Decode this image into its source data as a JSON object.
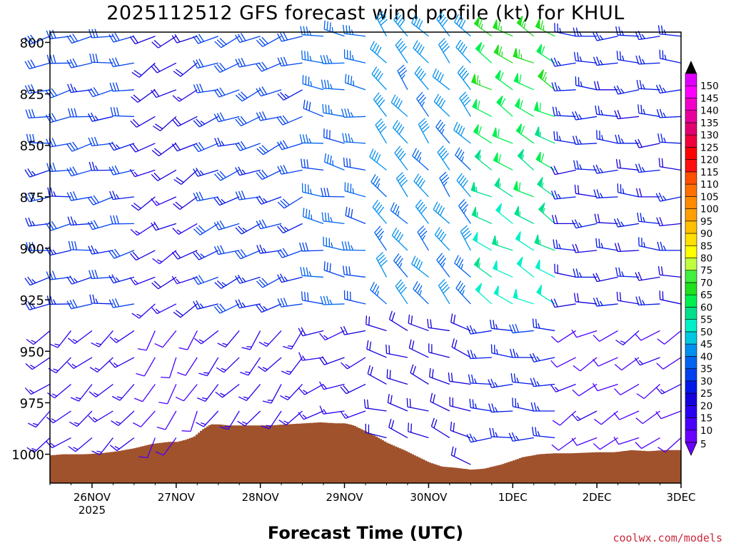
{
  "chart_data": {
    "type": "wind-barb-profile",
    "title": "2025112512 GFS forecast wind profile (kt) for KHUL",
    "xlabel": "Forecast Time (UTC)",
    "credit": "coolwx.com/models",
    "y_axis": {
      "unit": "hPa",
      "ticks": [
        800,
        825,
        850,
        875,
        900,
        925,
        950,
        975,
        1000
      ],
      "range": [
        795,
        1014
      ],
      "inverted": true
    },
    "x_axis": {
      "ticks": [
        {
          "label": "26NOV",
          "sub": "2025",
          "day": 0
        },
        {
          "label": "27NOV",
          "sub": "",
          "day": 1
        },
        {
          "label": "28NOV",
          "sub": "",
          "day": 2
        },
        {
          "label": "29NOV",
          "sub": "",
          "day": 3
        },
        {
          "label": "30NOV",
          "sub": "",
          "day": 4
        },
        {
          "label": "1DEC",
          "sub": "",
          "day": 5
        },
        {
          "label": "2DEC",
          "sub": "",
          "day": 6
        },
        {
          "label": "3DEC",
          "sub": "",
          "day": 7
        }
      ],
      "range_days": [
        -0.5,
        7.0
      ]
    },
    "colorbar": {
      "labels": [
        5,
        10,
        15,
        20,
        25,
        30,
        35,
        40,
        45,
        50,
        55,
        60,
        65,
        70,
        75,
        80,
        85,
        90,
        95,
        100,
        105,
        110,
        115,
        120,
        125,
        130,
        135,
        140,
        145,
        150
      ],
      "colors": [
        "#6a00ff",
        "#4a00ff",
        "#2a00f0",
        "#1400dc",
        "#0018e8",
        "#0040f0",
        "#0064f0",
        "#0090f0",
        "#00c8e0",
        "#00f0c8",
        "#00e08c",
        "#00f050",
        "#20e020",
        "#40f040",
        "#c0ff40",
        "#ffff00",
        "#ffe000",
        "#ffc000",
        "#ffa000",
        "#ff8c00",
        "#ff7000",
        "#ff5000",
        "#ff1010",
        "#ff0000",
        "#f0003c",
        "#e00070",
        "#e8009c",
        "#f000c8",
        "#ff00ff",
        "#e000ff"
      ]
    },
    "terrain_color": "#a0522d",
    "surface_pressure": {
      "days": [
        -0.5,
        -0.35,
        -0.1,
        0.1,
        0.3,
        0.5,
        0.7,
        0.9,
        1.0,
        1.1,
        1.2,
        1.3,
        1.4,
        1.5,
        1.6,
        1.7,
        1.9,
        2.1,
        2.3,
        2.5,
        2.7,
        2.9,
        3.0,
        3.1,
        3.2,
        3.35,
        3.5,
        3.7,
        3.9,
        4.0,
        4.15,
        4.3,
        4.5,
        4.65,
        4.85,
        5.0,
        5.1,
        5.3,
        5.5,
        5.7,
        6.0,
        6.2,
        6.4,
        6.6,
        6.8,
        7.0
      ],
      "hpa": [
        1000.5,
        1000,
        1000,
        999.5,
        998.5,
        997,
        995,
        994,
        994,
        993,
        991.5,
        988,
        985.5,
        985.5,
        986,
        986,
        986,
        986,
        985.5,
        985,
        984.5,
        985,
        985,
        986,
        988,
        991,
        994.5,
        998,
        1002,
        1004,
        1006,
        1006.5,
        1007.5,
        1007,
        1005,
        1003,
        1001.5,
        1000,
        999.5,
        999.5,
        999,
        999,
        998,
        998.5,
        998,
        998
      ]
    },
    "barb_levels_hpa": [
      797,
      810,
      823,
      836,
      849,
      862,
      875,
      888,
      901,
      914,
      927,
      940,
      953,
      966,
      979,
      992,
      1005
    ],
    "barb_times_days": [
      -0.5,
      -0.25,
      0.0,
      0.25,
      0.5,
      0.75,
      1.0,
      1.25,
      1.5,
      1.75,
      2.0,
      2.25,
      2.5,
      2.75,
      3.0,
      3.25,
      3.5,
      3.75,
      4.0,
      4.25,
      4.5,
      4.75,
      5.0,
      5.25,
      5.5,
      5.75,
      6.0,
      6.25,
      6.5,
      6.75,
      7.0
    ],
    "wind_regimes": [
      {
        "days": [
          -0.5,
          0.5
        ],
        "dir_deg": 260,
        "speed_kt": [
          25,
          30
        ]
      },
      {
        "days": [
          0.5,
          1.4
        ],
        "dir_deg": 240,
        "speed_kt": [
          15,
          20
        ]
      },
      {
        "days": [
          1.4,
          2.5
        ],
        "dir_deg": 250,
        "speed_kt": [
          25,
          30
        ]
      },
      {
        "days": [
          2.5,
          3.3
        ],
        "dir_deg": 280,
        "speed_kt": [
          30,
          35
        ]
      },
      {
        "days": [
          3.3,
          4.5
        ],
        "dir_deg": 320,
        "speed_kt": [
          35,
          40
        ]
      },
      {
        "days": [
          4.5,
          5.6
        ],
        "dir_deg": 300,
        "speed_kt": [
          40,
          65
        ]
      },
      {
        "days": [
          5.6,
          7.0
        ],
        "dir_deg": 270,
        "speed_kt": [
          20,
          25
        ]
      }
    ]
  }
}
